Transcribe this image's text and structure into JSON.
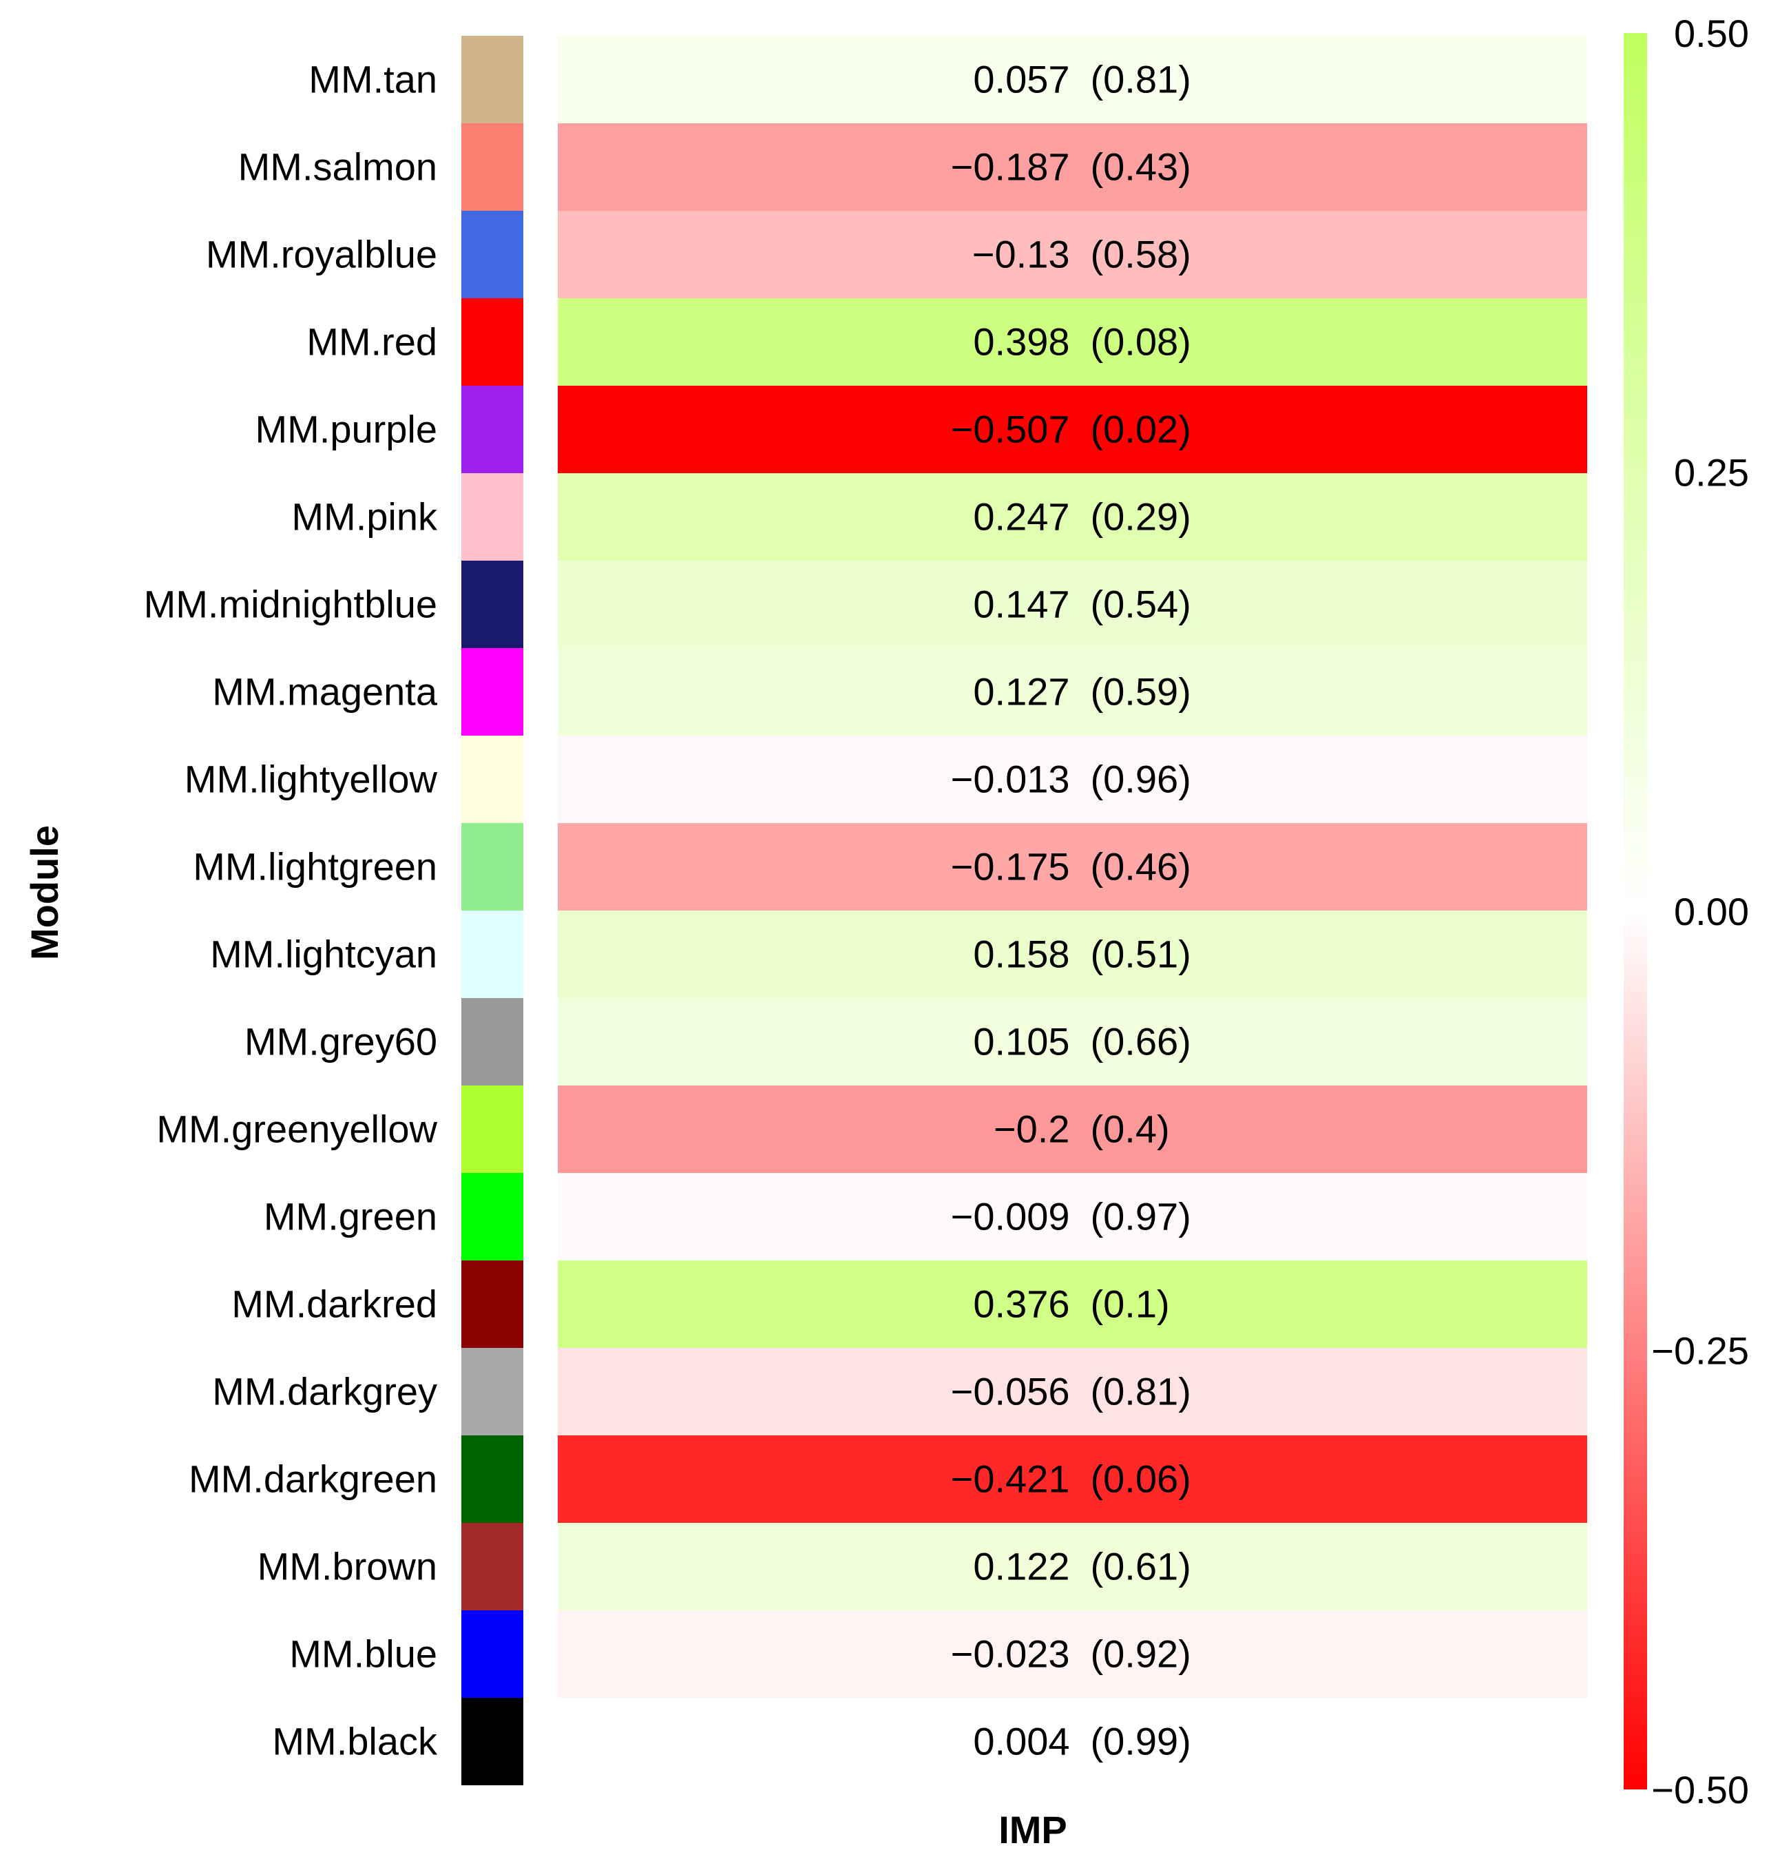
{
  "chart_data": {
    "type": "heatmap",
    "xlabel": "IMP",
    "ylabel": "Module",
    "column": "IMP",
    "modules": [
      {
        "label": "MM.tan",
        "swatch": "#d2b48c",
        "value": 0.057,
        "text_value": "0.057",
        "text_p": "(0.81)"
      },
      {
        "label": "MM.salmon",
        "swatch": "#fa8072",
        "value": -0.187,
        "text_value": "−0.187",
        "text_p": "(0.43)"
      },
      {
        "label": "MM.royalblue",
        "swatch": "#4169e1",
        "value": -0.13,
        "text_value": "−0.13",
        "text_p": "(0.58)"
      },
      {
        "label": "MM.red",
        "swatch": "#ff0000",
        "value": 0.398,
        "text_value": "0.398",
        "text_p": "(0.08)"
      },
      {
        "label": "MM.purple",
        "swatch": "#a020f0",
        "value": -0.507,
        "text_value": "−0.507",
        "text_p": "(0.02)"
      },
      {
        "label": "MM.pink",
        "swatch": "#ffc0cb",
        "value": 0.247,
        "text_value": "0.247",
        "text_p": "(0.29)"
      },
      {
        "label": "MM.midnightblue",
        "swatch": "#191970",
        "value": 0.147,
        "text_value": "0.147",
        "text_p": "(0.54)"
      },
      {
        "label": "MM.magenta",
        "swatch": "#ff00ff",
        "value": 0.127,
        "text_value": "0.127",
        "text_p": "(0.59)"
      },
      {
        "label": "MM.lightyellow",
        "swatch": "#ffffe0",
        "value": -0.013,
        "text_value": "−0.013",
        "text_p": "(0.96)"
      },
      {
        "label": "MM.lightgreen",
        "swatch": "#90ee90",
        "value": -0.175,
        "text_value": "−0.175",
        "text_p": "(0.46)"
      },
      {
        "label": "MM.lightcyan",
        "swatch": "#e0ffff",
        "value": 0.158,
        "text_value": "0.158",
        "text_p": "(0.51)"
      },
      {
        "label": "MM.grey60",
        "swatch": "#999999",
        "value": 0.105,
        "text_value": "0.105",
        "text_p": "(0.66)"
      },
      {
        "label": "MM.greenyellow",
        "swatch": "#adff2f",
        "value": -0.2,
        "text_value": "−0.2",
        "text_p": "(0.4)"
      },
      {
        "label": "MM.green",
        "swatch": "#00ff00",
        "value": -0.009,
        "text_value": "−0.009",
        "text_p": "(0.97)"
      },
      {
        "label": "MM.darkred",
        "swatch": "#8b0000",
        "value": 0.376,
        "text_value": "0.376",
        "text_p": "(0.1)"
      },
      {
        "label": "MM.darkgrey",
        "swatch": "#a9a9a9",
        "value": -0.056,
        "text_value": "−0.056",
        "text_p": "(0.81)"
      },
      {
        "label": "MM.darkgreen",
        "swatch": "#006400",
        "value": -0.421,
        "text_value": "−0.421",
        "text_p": "(0.06)"
      },
      {
        "label": "MM.brown",
        "swatch": "#a52a2a",
        "value": 0.122,
        "text_value": "0.122",
        "text_p": "(0.61)"
      },
      {
        "label": "MM.blue",
        "swatch": "#0000ff",
        "value": -0.023,
        "text_value": "−0.023",
        "text_p": "(0.92)"
      },
      {
        "label": "MM.black",
        "swatch": "#000000",
        "value": 0.004,
        "text_value": "0.004",
        "text_p": "(0.99)"
      }
    ],
    "color_scale": {
      "range": [
        -0.5,
        0.5
      ],
      "low_color": "#ff0000",
      "mid_color": "#ffffff",
      "high_color": "#c0ff60",
      "ticks": [
        {
          "value": 0.5,
          "label": "0.50"
        },
        {
          "value": 0.25,
          "label": "0.25"
        },
        {
          "value": 0.0,
          "label": "0.00"
        },
        {
          "value": -0.25,
          "label": "−0.25"
        },
        {
          "value": -0.5,
          "label": "−0.50"
        }
      ]
    }
  }
}
